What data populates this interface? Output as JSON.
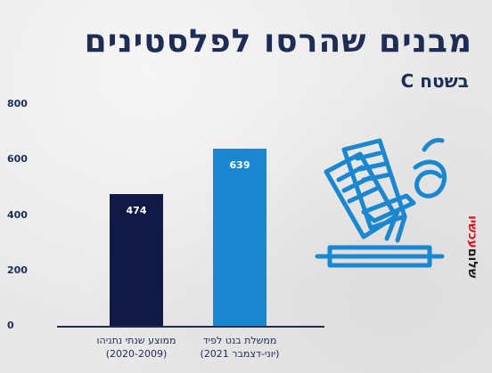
{
  "header": {
    "title": "מבנים שהרסו לפלסטינים",
    "subtitle": "בשטח C"
  },
  "colors": {
    "title": "#1f2d55",
    "bar_netanyahu": "#111a45",
    "bar_bennett": "#1b87d0",
    "icon": "#1b87d0",
    "brand_red": "#d8141e"
  },
  "chart_data": {
    "type": "bar",
    "title": "מבנים שהרסו לפלסטינים",
    "subtitle": "בשטח C",
    "xlabel": "",
    "ylabel": "",
    "ylim": [
      0,
      800
    ],
    "y_ticks": [
      "0",
      "200",
      "400",
      "600",
      "800"
    ],
    "y_tick_values": [
      0,
      200,
      400,
      600,
      800
    ],
    "grid": false,
    "categories": [
      [
        "ממוצע שנתי נתניהו",
        "(2020-2009)"
      ],
      [
        "ממשלת בנט לפיד",
        "(יוני-דצמבר 2021)"
      ]
    ],
    "values": [
      474,
      639
    ],
    "value_labels": [
      "474",
      "639"
    ],
    "bar_colors": [
      "#111a45",
      "#1b87d0"
    ]
  },
  "icon": {
    "name": "document-shredder-icon"
  },
  "brand": {
    "part1": "שלום",
    "part2": "עכשיו"
  }
}
